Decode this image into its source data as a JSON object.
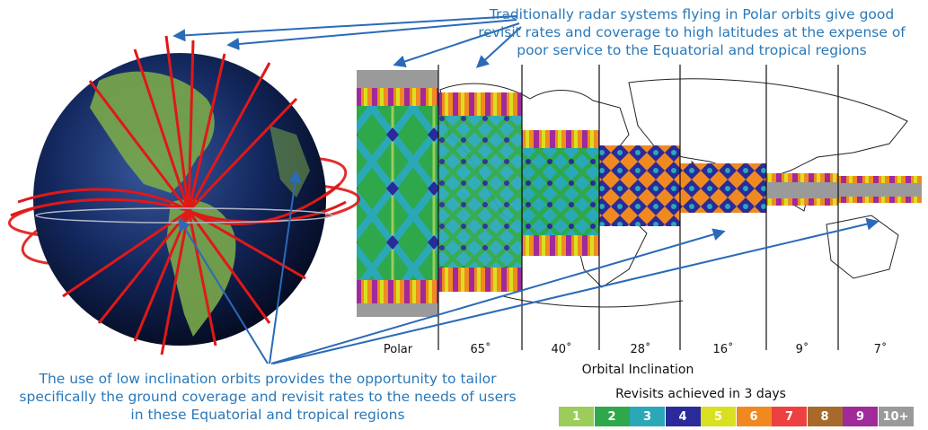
{
  "top_caption": "Traditionally radar systems flying in Polar orbits give good revisit rates and coverage to high latitudes at the expense of poor service to the Equatorial and tropical regions",
  "bottom_caption": "The use of low inclination orbits provides the opportunity to tailor specifically the ground coverage and revisit rates to the needs of users in these Equatorial and tropical regions",
  "inclination_labels": [
    "Polar",
    "65˚",
    "40˚",
    "28˚",
    "16˚",
    "9˚",
    "7˚"
  ],
  "axis_title": "Orbital Inclination",
  "legend": {
    "title": "Revisits achieved in 3 days",
    "items": [
      {
        "label": "1",
        "color": "#9ccc5a"
      },
      {
        "label": "2",
        "color": "#2ea84a"
      },
      {
        "label": "3",
        "color": "#2aa8b8"
      },
      {
        "label": "4",
        "color": "#2a2a9a"
      },
      {
        "label": "5",
        "color": "#d8e020"
      },
      {
        "label": "6",
        "color": "#f08a20"
      },
      {
        "label": "7",
        "color": "#ee4040"
      },
      {
        "label": "8",
        "color": "#a86a2a"
      },
      {
        "label": "9",
        "color": "#a02a9a"
      },
      {
        "label": "10+",
        "color": "#9a9a9a"
      }
    ]
  },
  "colors": {
    "arrow": "#2a6ab8",
    "orbit": "#e01818",
    "globe_ocean": "#0e1e4a",
    "land": "#7aa84a"
  }
}
